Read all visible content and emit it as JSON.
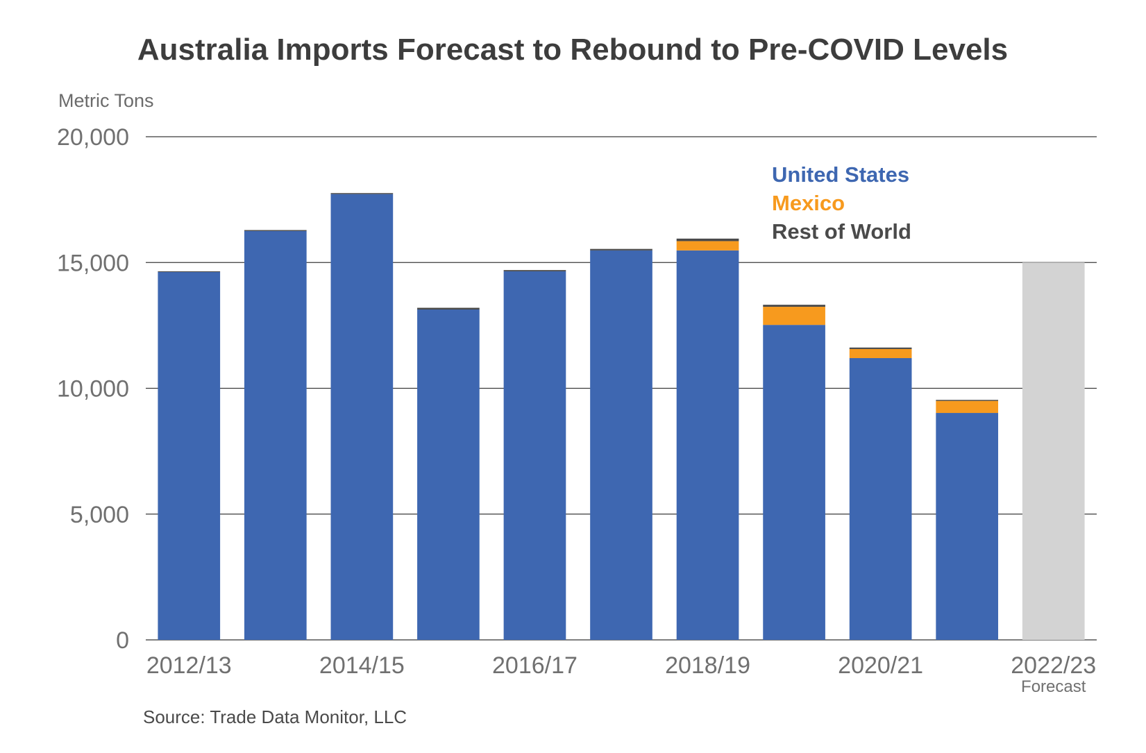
{
  "chart_data": {
    "type": "bar",
    "stacked": true,
    "title": "Australia Imports Forecast to Rebound to Pre-COVID Levels",
    "ylabel": "Metric Tons",
    "xlabel": "",
    "ylim": [
      0,
      20000
    ],
    "yticks": [
      0,
      5000,
      10000,
      15000,
      20000
    ],
    "ytick_labels": [
      "0",
      "5,000",
      "10,000",
      "15,000",
      "20,000"
    ],
    "grid": true,
    "categories": [
      "2012/13",
      "2013/14",
      "2014/15",
      "2015/16",
      "2016/17",
      "2017/18",
      "2018/19",
      "2019/20",
      "2020/21",
      "2021/22",
      "2022/23"
    ],
    "xtick_labels": [
      "2012/13",
      "",
      "2014/15",
      "",
      "2016/17",
      "",
      "2018/19",
      "",
      "2020/21",
      "",
      "2022/23"
    ],
    "x_annotation": {
      "category": "2022/23",
      "text": "Forecast"
    },
    "series": [
      {
        "name": "United States",
        "color": "#3e67b1",
        "values": [
          14620,
          16250,
          17720,
          13130,
          14650,
          15480,
          15480,
          12520,
          11200,
          9020,
          0
        ]
      },
      {
        "name": "Mexico",
        "color": "#f79a1e",
        "values": [
          0,
          0,
          0,
          0,
          0,
          0,
          370,
          720,
          360,
          480,
          0
        ]
      },
      {
        "name": "Rest of World",
        "color": "#4a4a4a",
        "values": [
          30,
          40,
          40,
          70,
          50,
          60,
          100,
          80,
          60,
          40,
          0
        ]
      },
      {
        "name": "Forecast",
        "color": "#d3d3d3",
        "values": [
          0,
          0,
          0,
          0,
          0,
          0,
          0,
          0,
          0,
          0,
          15000
        ]
      }
    ],
    "legend": {
      "placement": "top-right",
      "entries": [
        "United States",
        "Mexico",
        "Rest of World"
      ]
    },
    "source": "Source: Trade Data Monitor, LLC"
  }
}
